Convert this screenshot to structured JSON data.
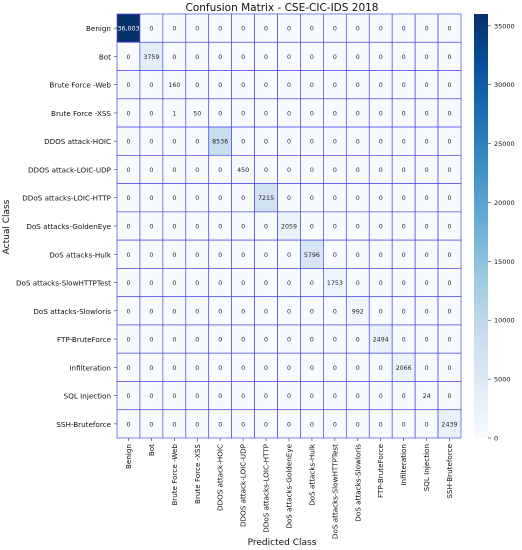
{
  "chart_data": {
    "type": "heatmap",
    "title": "Confusion Matrix - CSE-CIC-IDS 2018",
    "xlabel": "Predicted Class",
    "ylabel": "Actual Class",
    "rows": [
      "Benign",
      "Bot",
      "Brute Force -Web",
      "Brute Force -XSS",
      "DDOS attack-HOIC",
      "DDOS attack-LOIC-UDP",
      "DDoS attacks-LOIC-HTTP",
      "DoS attacks-GoldenEye",
      "DoS attacks-Hulk",
      "DoS attacks-SlowHTTPTest",
      "DoS attacks-Slowloris",
      "FTP-BruteForce",
      "Infilteration",
      "SQL Injection",
      "SSH-Bruteforce"
    ],
    "columns": [
      "Benign",
      "Bot",
      "Brute Force -Web",
      "Brute Force -XSS",
      "DDOS attack-HOIC",
      "DDOS attack-LOIC-UDP",
      "DDoS attacks-LOIC-HTTP",
      "DoS attacks-GoldenEye",
      "DoS attacks-Hulk",
      "DoS attacks-SlowHTTPTest",
      "DoS attacks-Slowloris",
      "FTP-BruteForce",
      "Infilteration",
      "SQL Injection",
      "SSH-Bruteforce"
    ],
    "matrix": [
      [
        36003,
        0,
        0,
        0,
        0,
        0,
        0,
        0,
        0,
        0,
        0,
        0,
        0,
        0,
        0
      ],
      [
        0,
        3759,
        0,
        0,
        0,
        0,
        0,
        0,
        0,
        0,
        0,
        0,
        0,
        0,
        0
      ],
      [
        0,
        0,
        160,
        0,
        0,
        0,
        0,
        0,
        0,
        0,
        0,
        0,
        0,
        0,
        0
      ],
      [
        0,
        0,
        1,
        50,
        0,
        0,
        0,
        0,
        0,
        0,
        0,
        0,
        0,
        0,
        0
      ],
      [
        0,
        0,
        0,
        0,
        8536,
        0,
        0,
        0,
        0,
        0,
        0,
        0,
        0,
        0,
        0
      ],
      [
        0,
        0,
        0,
        0,
        0,
        450,
        0,
        0,
        0,
        0,
        0,
        0,
        0,
        0,
        0
      ],
      [
        0,
        0,
        0,
        0,
        0,
        0,
        7215,
        0,
        0,
        0,
        0,
        0,
        0,
        0,
        0
      ],
      [
        0,
        0,
        0,
        0,
        0,
        0,
        0,
        2059,
        0,
        0,
        0,
        0,
        0,
        0,
        0
      ],
      [
        0,
        0,
        0,
        0,
        0,
        0,
        0,
        0,
        5796,
        0,
        0,
        0,
        0,
        0,
        0
      ],
      [
        0,
        0,
        0,
        0,
        0,
        0,
        0,
        0,
        0,
        1753,
        0,
        0,
        0,
        0,
        0
      ],
      [
        0,
        0,
        0,
        0,
        0,
        0,
        0,
        0,
        0,
        0,
        992,
        0,
        0,
        0,
        0
      ],
      [
        0,
        0,
        0,
        0,
        0,
        0,
        0,
        0,
        0,
        0,
        0,
        2494,
        0,
        0,
        0
      ],
      [
        0,
        0,
        0,
        0,
        0,
        0,
        0,
        0,
        0,
        0,
        0,
        0,
        2066,
        0,
        0
      ],
      [
        0,
        0,
        0,
        0,
        0,
        0,
        0,
        0,
        0,
        0,
        0,
        0,
        0,
        24,
        0
      ],
      [
        0,
        0,
        0,
        0,
        0,
        0,
        0,
        0,
        0,
        0,
        0,
        0,
        0,
        0,
        2439
      ]
    ],
    "cell_labels": [
      [
        "36,003",
        "0",
        "0",
        "0",
        "0",
        "0",
        "0",
        "0",
        "0",
        "0",
        "0",
        "0",
        "0",
        "0",
        "0"
      ],
      [
        "0",
        "3759",
        "0",
        "0",
        "0",
        "0",
        "0",
        "0",
        "0",
        "0",
        "0",
        "0",
        "0",
        "0",
        "0"
      ],
      [
        "0",
        "0",
        "160",
        "0",
        "0",
        "0",
        "0",
        "0",
        "0",
        "0",
        "0",
        "0",
        "0",
        "0",
        "0"
      ],
      [
        "0",
        "0",
        "1",
        "50",
        "0",
        "0",
        "0",
        "0",
        "0",
        "0",
        "0",
        "0",
        "0",
        "0",
        "0"
      ],
      [
        "0",
        "0",
        "0",
        "0",
        "8536",
        "0",
        "0",
        "0",
        "0",
        "0",
        "0",
        "0",
        "0",
        "0",
        "0"
      ],
      [
        "0",
        "0",
        "0",
        "0",
        "0",
        "450",
        "0",
        "0",
        "0",
        "0",
        "0",
        "0",
        "0",
        "0",
        "0"
      ],
      [
        "0",
        "0",
        "0",
        "0",
        "0",
        "0",
        "7215",
        "0",
        "0",
        "0",
        "0",
        "0",
        "0",
        "0",
        "0"
      ],
      [
        "0",
        "0",
        "0",
        "0",
        "0",
        "0",
        "0",
        "2059",
        "0",
        "0",
        "0",
        "0",
        "0",
        "0",
        "0"
      ],
      [
        "0",
        "0",
        "0",
        "0",
        "0",
        "0",
        "0",
        "0",
        "5796",
        "0",
        "0",
        "0",
        "0",
        "0",
        "0"
      ],
      [
        "0",
        "0",
        "0",
        "0",
        "0",
        "0",
        "0",
        "0",
        "0",
        "1753",
        "0",
        "0",
        "0",
        "0",
        "0"
      ],
      [
        "0",
        "0",
        "0",
        "0",
        "0",
        "0",
        "0",
        "0",
        "0",
        "0",
        "992",
        "0",
        "0",
        "0",
        "0"
      ],
      [
        "0",
        "0",
        "0",
        "0",
        "0",
        "0",
        "0",
        "0",
        "0",
        "0",
        "0",
        "2494",
        "0",
        "0",
        "0"
      ],
      [
        "0",
        "0",
        "0",
        "0",
        "0",
        "0",
        "0",
        "0",
        "0",
        "0",
        "0",
        "0",
        "2066",
        "0",
        "0"
      ],
      [
        "0",
        "0",
        "0",
        "0",
        "0",
        "0",
        "0",
        "0",
        "0",
        "0",
        "0",
        "0",
        "0",
        "24",
        "0"
      ],
      [
        "0",
        "0",
        "0",
        "0",
        "0",
        "0",
        "0",
        "0",
        "0",
        "0",
        "0",
        "0",
        "0",
        "0",
        "2439"
      ]
    ],
    "colorbar": {
      "min": 0,
      "max": 36003,
      "ticks": [
        0,
        5000,
        10000,
        15000,
        20000,
        25000,
        30000,
        35000
      ],
      "colormap": "Blues",
      "low_color": "#f7fbff",
      "high_color": "#08306b"
    },
    "grid_color": "#4a4ae6",
    "grid": true,
    "legend": "colorbar-right"
  }
}
